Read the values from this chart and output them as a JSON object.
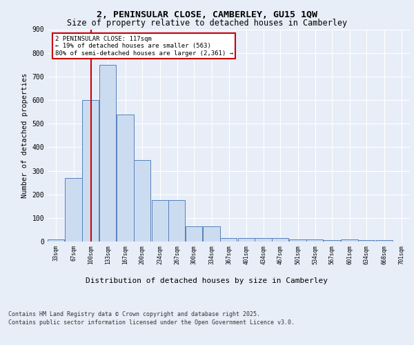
{
  "title1": "2, PENINSULAR CLOSE, CAMBERLEY, GU15 1QW",
  "title2": "Size of property relative to detached houses in Camberley",
  "xlabel": "Distribution of detached houses by size in Camberley",
  "ylabel": "Number of detached properties",
  "bins": [
    33,
    67,
    100,
    133,
    167,
    200,
    234,
    267,
    300,
    334,
    367,
    401,
    434,
    467,
    501,
    534,
    567,
    601,
    634,
    668,
    701
  ],
  "counts": [
    10,
    270,
    600,
    750,
    540,
    345,
    175,
    175,
    65,
    65,
    15,
    15,
    15,
    15,
    10,
    10,
    5,
    10,
    5,
    5
  ],
  "bar_color": "#ccdcf0",
  "bar_edge_color": "#5580bb",
  "property_size": 117,
  "property_line_color": "#cc0000",
  "annotation_text": "2 PENINSULAR CLOSE: 117sqm\n← 19% of detached houses are smaller (563)\n80% of semi-detached houses are larger (2,361) →",
  "annotation_box_color": "#cc0000",
  "ylim": [
    0,
    900
  ],
  "yticks": [
    0,
    100,
    200,
    300,
    400,
    500,
    600,
    700,
    800,
    900
  ],
  "background_color": "#e8eef8",
  "plot_background_color": "#e8eef8",
  "footer1": "Contains HM Land Registry data © Crown copyright and database right 2025.",
  "footer2": "Contains public sector information licensed under the Open Government Licence v3.0.",
  "grid_color": "#ffffff",
  "bin_width": 33
}
